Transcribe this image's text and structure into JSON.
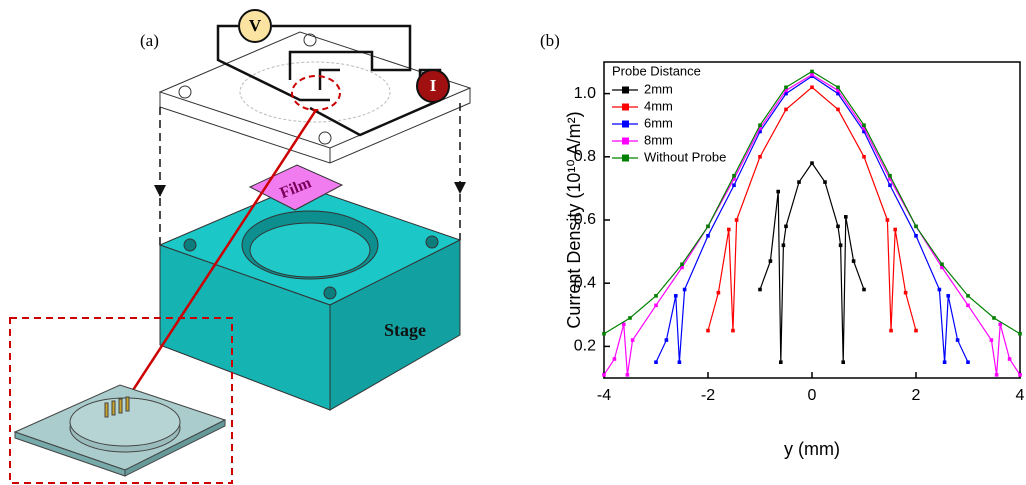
{
  "panel_a": {
    "label": "(a)",
    "voltmeter": "V",
    "ammeter": "I",
    "film": "Film",
    "stage": "Stage"
  },
  "chart_data": {
    "type": "line",
    "panel_label": "(b)",
    "x_label": "y (mm)",
    "y_label": "Current Density (10¹⁰ A/m²)",
    "xlim": [
      -4,
      4
    ],
    "xticks": [
      -4,
      -2,
      0,
      2,
      4
    ],
    "ylim": [
      0.1,
      1.1
    ],
    "yticks": [
      0.2,
      0.4,
      0.6,
      0.8,
      {
        "value": 1,
        "label": "1.0"
      }
    ],
    "legend_title": "Probe Distance",
    "legend": "top-left",
    "series": [
      {
        "name": "2mm",
        "color": "#000000",
        "x": [
          -1,
          -0.8,
          -0.65,
          -0.6,
          -0.55,
          -0.5,
          -0.25,
          0,
          0.25,
          0.5,
          0.55,
          0.6,
          0.65,
          0.8,
          1
        ],
        "values": [
          0.38,
          0.47,
          0.69,
          0.15,
          0.52,
          0.58,
          0.72,
          0.78,
          0.72,
          0.58,
          0.52,
          0.15,
          0.61,
          0.47,
          0.38
        ]
      },
      {
        "name": "4mm",
        "color": "#ff0000",
        "x": [
          -2,
          -1.8,
          -1.6,
          -1.52,
          -1.45,
          -1,
          -0.5,
          0,
          0.5,
          1,
          1.45,
          1.52,
          1.6,
          1.8,
          2
        ],
        "values": [
          0.25,
          0.37,
          0.57,
          0.25,
          0.6,
          0.8,
          0.95,
          1.02,
          0.95,
          0.8,
          0.6,
          0.25,
          0.57,
          0.37,
          0.25
        ]
      },
      {
        "name": "6mm",
        "color": "#0000ff",
        "x": [
          -3,
          -2.8,
          -2.62,
          -2.55,
          -2.45,
          -2,
          -1.5,
          -1,
          -0.5,
          0,
          0.5,
          1,
          1.5,
          2,
          2.45,
          2.55,
          2.62,
          2.8,
          3
        ],
        "values": [
          0.15,
          0.22,
          0.36,
          0.15,
          0.38,
          0.55,
          0.71,
          0.88,
          1.0,
          1.055,
          1.0,
          0.88,
          0.71,
          0.55,
          0.38,
          0.15,
          0.36,
          0.22,
          0.15
        ]
      },
      {
        "name": "8mm",
        "color": "#ff00ff",
        "x": [
          -4,
          -3.8,
          -3.62,
          -3.55,
          -3.45,
          -3,
          -2.5,
          -2,
          -1.5,
          -1,
          -0.5,
          0,
          0.5,
          1,
          1.5,
          2,
          2.5,
          3,
          3.45,
          3.55,
          3.62,
          3.8,
          4
        ],
        "values": [
          0.11,
          0.16,
          0.27,
          0.11,
          0.22,
          0.33,
          0.45,
          0.58,
          0.73,
          0.89,
          1.01,
          1.06,
          1.01,
          0.89,
          0.73,
          0.58,
          0.45,
          0.33,
          0.22,
          0.11,
          0.27,
          0.16,
          0.11
        ]
      },
      {
        "name": "Without Probe",
        "color": "#008000",
        "x": [
          -4,
          -3.5,
          -3,
          -2.5,
          -2,
          -1.5,
          -1,
          -0.5,
          0,
          0.5,
          1,
          1.5,
          2,
          2.5,
          3,
          3.5,
          4
        ],
        "values": [
          0.24,
          0.29,
          0.36,
          0.46,
          0.58,
          0.74,
          0.9,
          1.02,
          1.07,
          1.02,
          0.9,
          0.74,
          0.58,
          0.46,
          0.36,
          0.29,
          0.24
        ]
      }
    ]
  }
}
